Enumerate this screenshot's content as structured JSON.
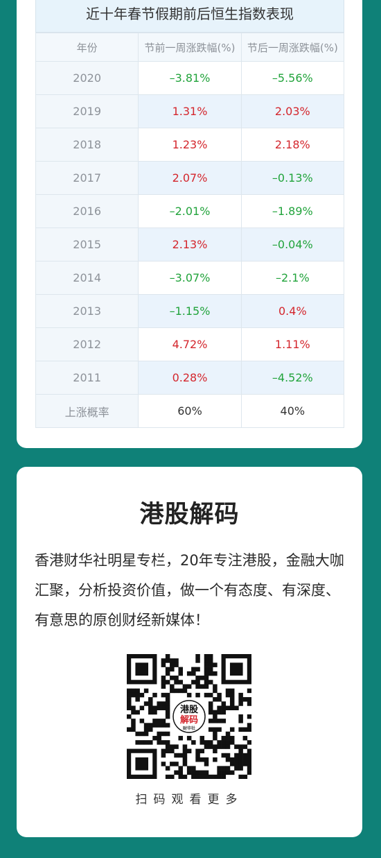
{
  "table": {
    "title": "近十年春节假期前后恒生指数表现",
    "headers": [
      "年份",
      "节前一周涨跌幅(%)",
      "节后一周涨跌幅(%)"
    ],
    "rows": [
      {
        "year": "2020",
        "pre": "–3.81%",
        "post": "–5.56%"
      },
      {
        "year": "2019",
        "pre": "1.31%",
        "post": "2.03%"
      },
      {
        "year": "2018",
        "pre": "1.23%",
        "post": "2.18%"
      },
      {
        "year": "2017",
        "pre": "2.07%",
        "post": "–0.13%"
      },
      {
        "year": "2016",
        "pre": "–2.01%",
        "post": "–1.89%"
      },
      {
        "year": "2015",
        "pre": "2.13%",
        "post": "–0.04%"
      },
      {
        "year": "2014",
        "pre": "–3.07%",
        "post": "–2.1%"
      },
      {
        "year": "2013",
        "pre": "–1.15%",
        "post": "0.4%"
      },
      {
        "year": "2012",
        "pre": "4.72%",
        "post": "1.11%"
      },
      {
        "year": "2011",
        "pre": "0.28%",
        "post": "–4.52%"
      }
    ],
    "summary": {
      "label": "上涨概率",
      "pre": "60%",
      "post": "40%"
    }
  },
  "brand": {
    "title": "港股解码",
    "description": "香港财华社明星专栏，20年专注港股，金融大咖汇聚，分析投资价值，做一个有态度、有深度、有意思的原创财经新媒体！",
    "qr_logo_lines": [
      "港股",
      "解码",
      "财华社"
    ],
    "scan_label": "扫码观看更多"
  },
  "colors": {
    "background": "#0f8178",
    "up": "#d4262d",
    "down": "#21a33b",
    "header_bg": "#e7f3fb"
  },
  "icons": {
    "qr": "qr-code-icon"
  }
}
